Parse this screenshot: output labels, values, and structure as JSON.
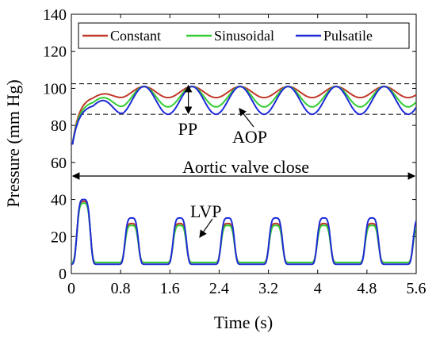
{
  "chart_data": {
    "type": "line",
    "xlabel": "Time (s)",
    "ylabel": "Pressure (mm Hg)",
    "xlim": [
      0,
      5.6
    ],
    "ylim": [
      0,
      140
    ],
    "xticks": [
      0,
      0.8,
      1.6,
      2.4,
      3.2,
      4,
      4.8,
      5.6
    ],
    "xtick_labels": [
      "0",
      "0.8",
      "1.6",
      "2.4",
      "3.2",
      "4",
      "4.8",
      "5.6"
    ],
    "yticks": [
      0,
      20,
      40,
      60,
      80,
      100,
      120,
      140
    ],
    "ytick_labels": [
      "0",
      "20",
      "40",
      "60",
      "80",
      "100",
      "120",
      "140"
    ],
    "grid": false,
    "legend_position": "top",
    "series": [
      {
        "name": "Constant",
        "color": "#c0392b",
        "aop_peak": 101,
        "aop_trough": 95,
        "lvp_first_peak": 39,
        "lvp_peak": 27,
        "lvp_trough": 6
      },
      {
        "name": "Sinusoidal",
        "color": "#33cc33",
        "aop_peak": 101,
        "aop_trough": 90,
        "lvp_first_peak": 38,
        "lvp_peak": 26,
        "lvp_trough": 6
      },
      {
        "name": "Pulsatile",
        "color": "#1f2bd6",
        "aop_peak": 101,
        "aop_trough": 86,
        "lvp_first_peak": 40,
        "lvp_peak": 30,
        "lvp_trough": 5
      }
    ],
    "cycle_period": 0.78,
    "first_peak_time": 0.2,
    "reference_lines": [
      102.5,
      86
    ],
    "annotations": {
      "pp": "PP",
      "aop": "AOP",
      "lvp": "LVP",
      "valve": "Aortic valve close"
    }
  }
}
